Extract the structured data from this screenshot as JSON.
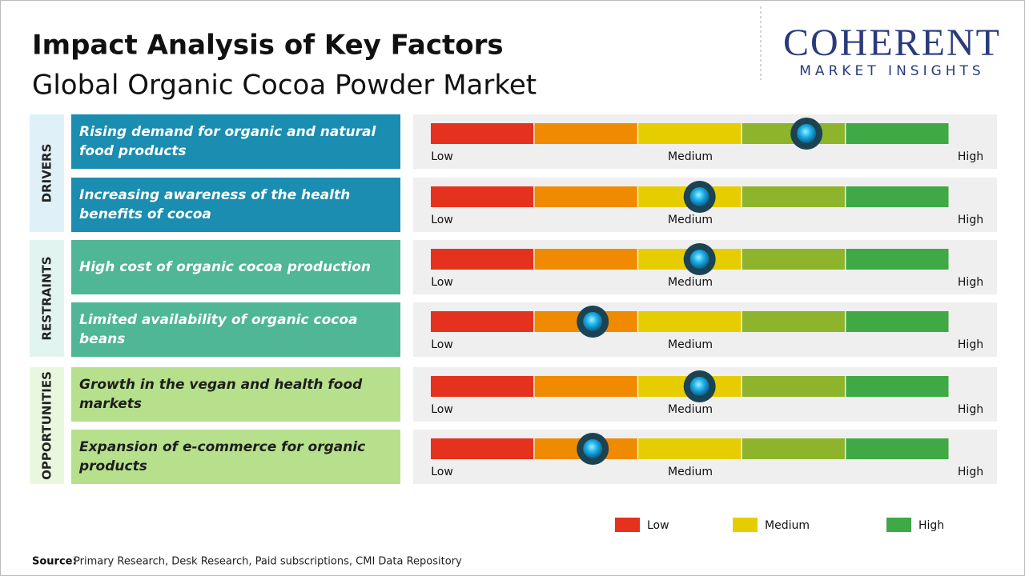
{
  "header": {
    "title": "Impact Analysis of Key Factors",
    "subtitle": "Global Organic Cocoa Powder Market"
  },
  "logo": {
    "name": "COHERENT",
    "tagline": "MARKET INSIGHTS"
  },
  "scale": {
    "range": [
      0,
      5
    ],
    "labels": [
      "Low",
      "Medium",
      "High"
    ],
    "colors": [
      "#e5321e",
      "#f08a00",
      "#e6cd00",
      "#8db42a",
      "#3ea945"
    ]
  },
  "groups": [
    {
      "name": "DRIVERS",
      "panel_color": "#dff0f8",
      "factor_color": "#1a8db0",
      "text_color": "#ffffff",
      "factors": [
        {
          "text": "Rising demand for organic and natural food products",
          "impact": 3.62
        },
        {
          "text": "Increasing awareness of the health benefits of cocoa",
          "impact": 2.59
        }
      ]
    },
    {
      "name": "RESTRAINTS",
      "panel_color": "#e2f4ef",
      "factor_color": "#4fb696",
      "text_color": "#ffffff",
      "factors": [
        {
          "text": "High cost of organic cocoa production",
          "impact": 2.59
        },
        {
          "text": "Limited availability of organic cocoa beans",
          "impact": 1.56
        }
      ]
    },
    {
      "name": "OPPORTUNITIES",
      "panel_color": "#eaf7df",
      "factor_color": "#b6e08c",
      "text_color": "#1d1d1d",
      "factors": [
        {
          "text": "Growth in the vegan and health food markets",
          "impact": 2.59
        },
        {
          "text": "Expansion of e-commerce for organic products",
          "impact": 1.56
        }
      ]
    }
  ],
  "legend": [
    {
      "label": "Low",
      "color": "#e5321e"
    },
    {
      "label": "Medium",
      "color": "#e6cd00"
    },
    {
      "label": "High",
      "color": "#3ea945"
    }
  ],
  "source": {
    "label": "Source:",
    "text": "Primary Research, Desk Research, Paid subscriptions, CMI Data Repository"
  }
}
